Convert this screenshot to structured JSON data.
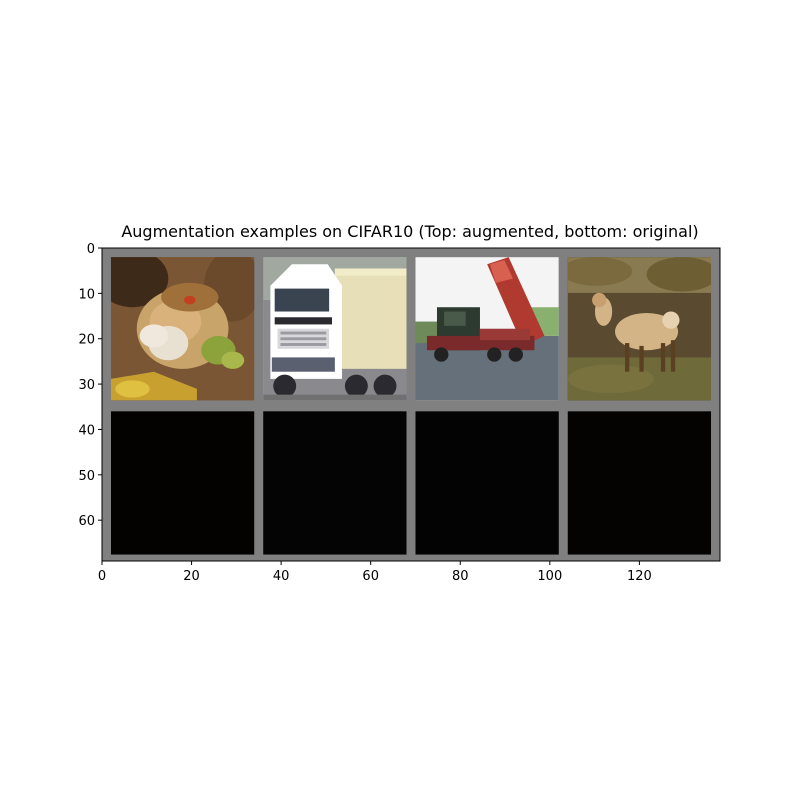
{
  "chart_data": {
    "type": "image-grid",
    "title": "Augmentation examples on CIFAR10 (Top: augmented, bottom: original)",
    "xlim": [
      0,
      138
    ],
    "ylim": [
      69,
      0
    ],
    "x_ticks": [
      0,
      20,
      40,
      60,
      80,
      100,
      120
    ],
    "y_ticks": [
      0,
      10,
      20,
      30,
      40,
      50,
      60
    ],
    "grid": false,
    "legend": "none",
    "background_color": "#808080",
    "rows": 2,
    "cols": 4,
    "tile_size": 32,
    "padding": 2,
    "tiles": [
      {
        "row": 0,
        "col": 0,
        "subject": "frog-icon",
        "colors": {
          "base": "#7a5634",
          "accent": "#c9a46a",
          "light": "#e8e0d0",
          "dark": "#3e2a18",
          "extra": "#8ca23a"
        }
      },
      {
        "row": 0,
        "col": 1,
        "subject": "truck-icon",
        "colors": {
          "base": "#c8c8cc",
          "accent": "#e6dfb8",
          "light": "#ffffff",
          "dark": "#2a2a30",
          "extra": "#5a6070"
        }
      },
      {
        "row": 0,
        "col": 2,
        "subject": "dump-truck-icon",
        "colors": {
          "base": "#66707a",
          "accent": "#b03a30",
          "light": "#f4f4f4",
          "dark": "#2c3a30",
          "extra": "#6f8a5a"
        }
      },
      {
        "row": 0,
        "col": 3,
        "subject": "deer-icon",
        "colors": {
          "base": "#5a4a30",
          "accent": "#d2b486",
          "light": "#8a7a52",
          "dark": "#2f2616",
          "extra": "#6e6a3a"
        }
      },
      {
        "row": 1,
        "col": 0,
        "subject": "dark-image",
        "colors": {
          "base": "#030201"
        }
      },
      {
        "row": 1,
        "col": 1,
        "subject": "dark-image",
        "colors": {
          "base": "#040404"
        }
      },
      {
        "row": 1,
        "col": 2,
        "subject": "dark-image",
        "colors": {
          "base": "#030303"
        }
      },
      {
        "row": 1,
        "col": 3,
        "subject": "dark-image",
        "colors": {
          "base": "#040302"
        }
      }
    ]
  }
}
